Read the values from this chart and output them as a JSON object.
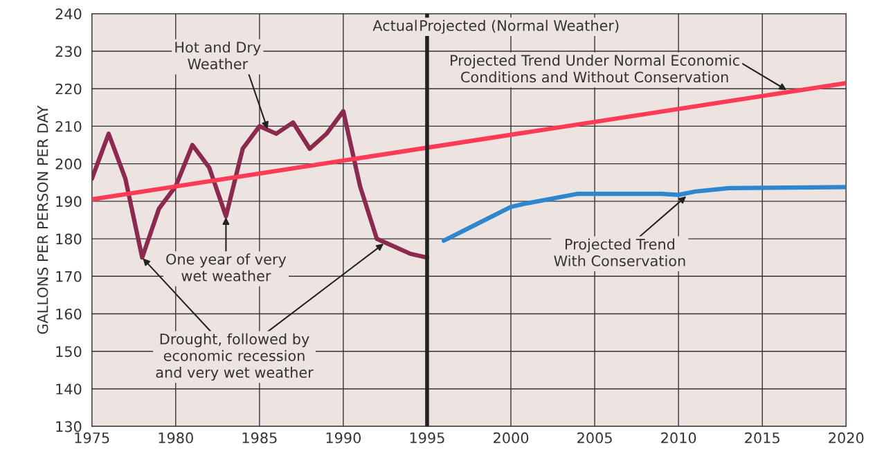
{
  "chart_data": {
    "type": "line",
    "ylabel": "GALLONS PER PERSON PER DAY",
    "xlim": [
      1975,
      2020
    ],
    "xticks": [
      1975,
      1980,
      1985,
      1990,
      1995,
      2000,
      2005,
      2010,
      2015,
      2020
    ],
    "ylim": [
      130,
      240
    ],
    "yticks": [
      130,
      140,
      150,
      160,
      170,
      180,
      190,
      200,
      210,
      220,
      230,
      240
    ],
    "grid": true,
    "marker": "none",
    "line_style": "solid",
    "series": [
      {
        "color": "#8b2a4e",
        "x": [
          1975,
          1976,
          1977,
          1978,
          1979,
          1980,
          1981,
          1982,
          1983,
          1984,
          1985,
          1986,
          1987,
          1988,
          1989,
          1990,
          1991,
          1992,
          1993,
          1994,
          1995
        ],
        "values": [
          196,
          208,
          196,
          175,
          188,
          194,
          205,
          199,
          186,
          204,
          210,
          208,
          211,
          204,
          208,
          214,
          194,
          180,
          178,
          176,
          175
        ]
      },
      {
        "color": "#ff3b55",
        "x": [
          1975,
          2020
        ],
        "values": [
          190.5,
          221.5
        ]
      },
      {
        "color": "#2e86cf",
        "x": [
          1996,
          1998,
          2000,
          2001,
          2004,
          2009,
          2010,
          2011,
          2013,
          2020
        ],
        "values": [
          179.5,
          184,
          188.5,
          189.5,
          192,
          192,
          191.7,
          192.6,
          193.5,
          193.8
        ]
      }
    ],
    "ref_lines": [
      {
        "axis": "x",
        "value": 1995,
        "color": "#222222"
      }
    ],
    "annotations": [
      {
        "text": "Hot and Dry\nWeather",
        "x": 1985.5,
        "y": 209
      },
      {
        "text": "One year of very\nwet weather",
        "x": 1983,
        "y": 186
      },
      {
        "text": "Drought, followed by\neconomic recession\nand very wet weather",
        "x": 1978,
        "y": 175
      },
      {
        "text": "Projected Trend Under Normal Economic\nConditions and Without Conservation",
        "x": 2016.5,
        "y": 219.5
      },
      {
        "text": "Projected Trend\nWith Conservation",
        "x": 2010.5,
        "y": 191.5
      },
      "Actual",
      "Projected (Normal Weather)"
    ]
  }
}
